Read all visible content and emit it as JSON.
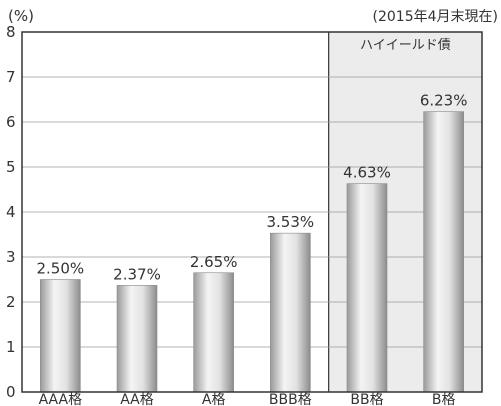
{
  "chart_data": {
    "type": "bar",
    "unit_label": "(%)",
    "date_note": "(2015年4月末現在)",
    "categories": [
      "AAA格",
      "AA格",
      "A格",
      "BBB格",
      "BB格",
      "B格"
    ],
    "values": [
      2.5,
      2.37,
      2.65,
      3.53,
      4.63,
      6.23
    ],
    "value_labels": [
      "2.50%",
      "2.37%",
      "2.65%",
      "3.53%",
      "4.63%",
      "6.23%"
    ],
    "ylim": [
      0,
      8
    ],
    "yticks": [
      "0",
      "1",
      "2",
      "3",
      "4",
      "5",
      "6",
      "7",
      "8"
    ],
    "grid": true,
    "highlight": {
      "label": "ハイイールド債",
      "categories": [
        "BB格",
        "B格"
      ],
      "color": "#ececec"
    },
    "bar_color": "#c8c8c8"
  }
}
